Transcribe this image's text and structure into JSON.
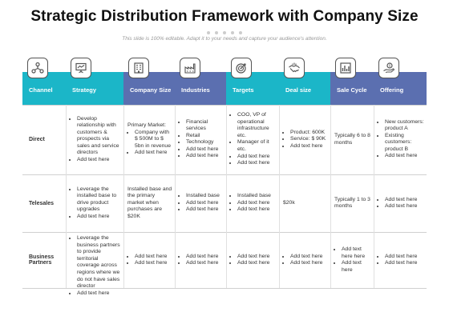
{
  "page": {
    "title": "Strategic Distribution Framework with Company Size",
    "subtitle": "This slide is 100% editable. Adapt it to your needs and capture your audience's attention."
  },
  "columns": [
    {
      "label": "Channel",
      "color": "#1bb6c8",
      "icon": "network-icon"
    },
    {
      "label": "Strategy",
      "color": "#1bb6c8",
      "icon": "presentation-board-icon"
    },
    {
      "label": "Company Size",
      "color": "#5b6fb0",
      "icon": "building-icon"
    },
    {
      "label": "Industries",
      "color": "#5b6fb0",
      "icon": "factory-icon"
    },
    {
      "label": "Targets",
      "color": "#1bb6c8",
      "icon": "target-icon"
    },
    {
      "label": "Deal size",
      "color": "#1bb6c8",
      "icon": "handshake-icon"
    },
    {
      "label": "Sale Cycle",
      "color": "#5b6fb0",
      "icon": "bar-chart-icon"
    },
    {
      "label": "Offering",
      "color": "#5b6fb0",
      "icon": "hand-coin-icon"
    }
  ],
  "rows": [
    {
      "label": "Direct",
      "cells": [
        {
          "text": "",
          "bullets": [
            "Develop relationship with customers & prospects via sales and service directors",
            "Add text here"
          ]
        },
        {
          "text": "Primary Market:",
          "bullets": [
            "Company with $ 500M to $ 5bn in revenue",
            "Add text here"
          ]
        },
        {
          "text": "",
          "bullets": [
            "Financial services",
            "Retail",
            "Technology",
            "Add text here",
            "Add text here"
          ]
        },
        {
          "text": "",
          "bullets": [
            "COO, VP of operational infrastructure etc.",
            "Manager of it etc.",
            "Add text here",
            "Add text here"
          ]
        },
        {
          "text": "",
          "bullets": [
            "Product: 600K",
            "Service: $ 90K",
            "Add text here"
          ]
        },
        {
          "text": "Typically 6 to 8 months",
          "bullets": []
        },
        {
          "text": "",
          "bullets": [
            "New customers: product A",
            "Existing customers: product B",
            "Add text here"
          ]
        }
      ]
    },
    {
      "label": "Telesales",
      "cells": [
        {
          "text": "",
          "bullets": [
            "Leverage the installed base to drive product upgrades",
            "Add text here"
          ]
        },
        {
          "text": "Installed base and the primary market when purchases are $20K",
          "bullets": []
        },
        {
          "text": "",
          "bullets": [
            "Installed base",
            "Add text here",
            "Add text here"
          ]
        },
        {
          "text": "",
          "bullets": [
            "Installed base",
            "Add text here",
            "Add text here"
          ]
        },
        {
          "text": "$20k",
          "bullets": []
        },
        {
          "text": "Typically 1 to 3 months",
          "bullets": []
        },
        {
          "text": "",
          "bullets": [
            "Add text here",
            "Add text here"
          ]
        }
      ]
    },
    {
      "label": "Business Partners",
      "cells": [
        {
          "text": "",
          "bullets": [
            "Leverage the business partners to provide territorial coverage across regions where we do not have sales director",
            "Add text here"
          ]
        },
        {
          "text": "",
          "bullets": [
            "Add text here",
            "Add text here"
          ]
        },
        {
          "text": "",
          "bullets": [
            "Add text here",
            "Add text here"
          ]
        },
        {
          "text": "",
          "bullets": [
            "Add text here",
            "Add text here"
          ]
        },
        {
          "text": "",
          "bullets": [
            "Add text here",
            "Add text here"
          ]
        },
        {
          "text": "",
          "bullets": [
            "Add text here here",
            "Add text here"
          ]
        },
        {
          "text": "",
          "bullets": [
            "Add text here",
            "Add text here"
          ]
        }
      ]
    }
  ]
}
